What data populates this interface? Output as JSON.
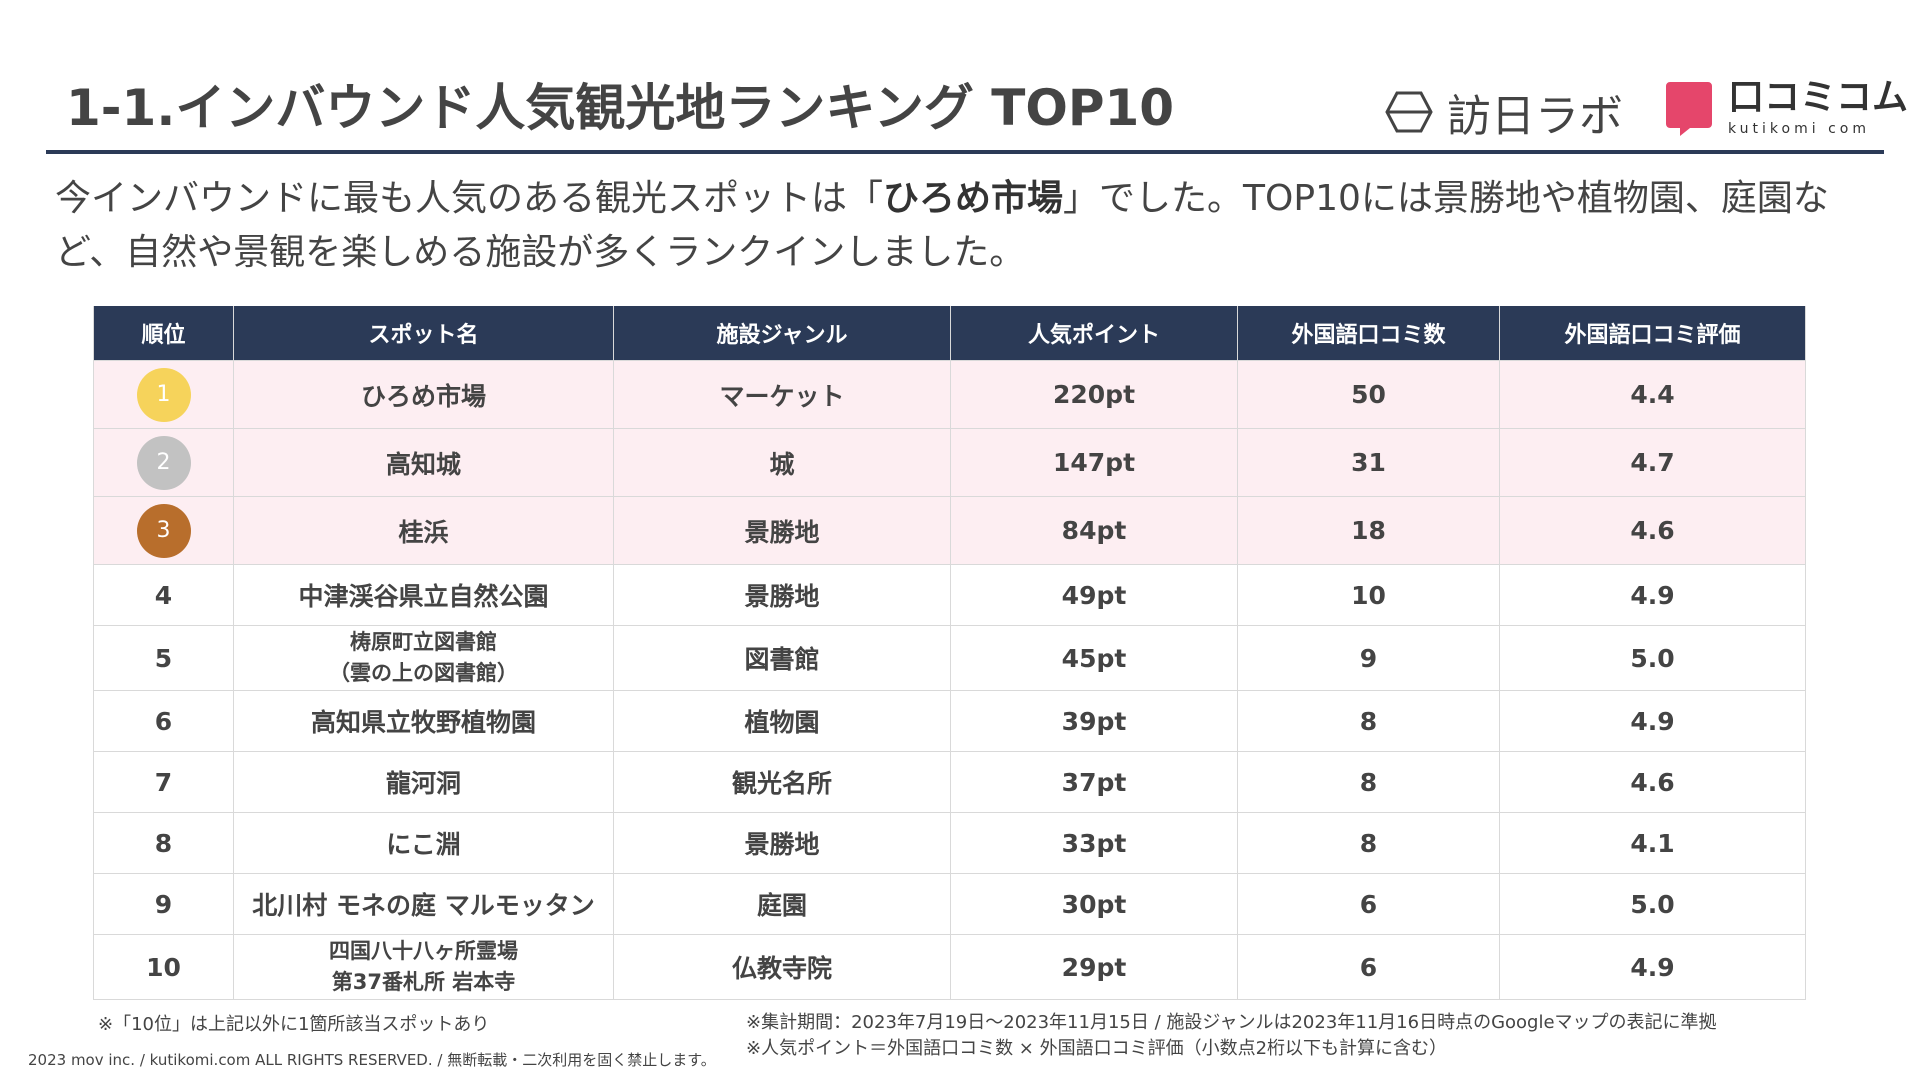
{
  "title": "1-1.インバウンド人気観光地ランキング TOP10",
  "logos": {
    "homeilab": "訪日ラボ",
    "kutikomi_jp": "口コミコム",
    "kutikomi_en": "kutikomi com",
    "kutikomi_color": "#e5466b"
  },
  "lead": {
    "part1": "今インバウンドに最も人気のある観光スポットは「",
    "highlight": "ひろめ市場",
    "part2": "」でした。TOP10には景勝地や植物園、庭園など、自然や景観を楽しめる施設が多くランクインしました。"
  },
  "table": {
    "headers": [
      "順位",
      "スポット名",
      "施設ジャンル",
      "人気ポイント",
      "外国語口コミ数",
      "外国語口コミ評価"
    ],
    "top_rows": [
      {
        "rank": "1",
        "medal_color": "#f6d35b",
        "spot": "ひろめ市場",
        "genre": "マーケット",
        "points": "220pt",
        "count": "50",
        "rating": "4.4"
      },
      {
        "rank": "2",
        "medal_color": "#c2c2c2",
        "spot": "高知城",
        "genre": "城",
        "points": "147pt",
        "count": "31",
        "rating": "4.7"
      },
      {
        "rank": "3",
        "medal_color": "#b86e2c",
        "spot": "桂浜",
        "genre": "景勝地",
        "points": "84pt",
        "count": "18",
        "rating": "4.6"
      }
    ],
    "rows": [
      {
        "rank": "4",
        "spot": "中津渓谷県立自然公園",
        "spot2": "",
        "genre": "景勝地",
        "points": "49pt",
        "count": "10",
        "rating": "4.9"
      },
      {
        "rank": "5",
        "spot": "梼原町立図書館",
        "spot2": "（雲の上の図書館）",
        "genre": "図書館",
        "points": "45pt",
        "count": "9",
        "rating": "5.0"
      },
      {
        "rank": "6",
        "spot": "高知県立牧野植物園",
        "spot2": "",
        "genre": "植物園",
        "points": "39pt",
        "count": "8",
        "rating": "4.9"
      },
      {
        "rank": "7",
        "spot": "龍河洞",
        "spot2": "",
        "genre": "観光名所",
        "points": "37pt",
        "count": "8",
        "rating": "4.6"
      },
      {
        "rank": "8",
        "spot": "にこ淵",
        "spot2": "",
        "genre": "景勝地",
        "points": "33pt",
        "count": "8",
        "rating": "4.1"
      },
      {
        "rank": "9",
        "spot": "北川村 モネの庭 マルモッタン",
        "spot2": "",
        "genre": "庭園",
        "points": "30pt",
        "count": "6",
        "rating": "5.0"
      },
      {
        "rank": "10",
        "spot": "四国八十八ヶ所霊場",
        "spot2": "第37番札所 岩本寺",
        "genre": "仏教寺院",
        "points": "29pt",
        "count": "6",
        "rating": "4.9"
      }
    ]
  },
  "notes": {
    "left": "※「10位」は上記以外に1箇所該当スポットあり",
    "right1": "※集計期間：2023年7月19日～2023年11月15日 / 施設ジャンルは2023年11月16日時点のGoogleマップの表記に準拠",
    "right2": "※人気ポイント＝外国語口コミ数 × 外国語口コミ評価（小数点2桁以下も計算に含む）"
  },
  "copyright": "2023 mov inc. / kutikomi.com ALL RIGHTS RESERVED. / 無断転載・二次利用を固く禁止します。"
}
